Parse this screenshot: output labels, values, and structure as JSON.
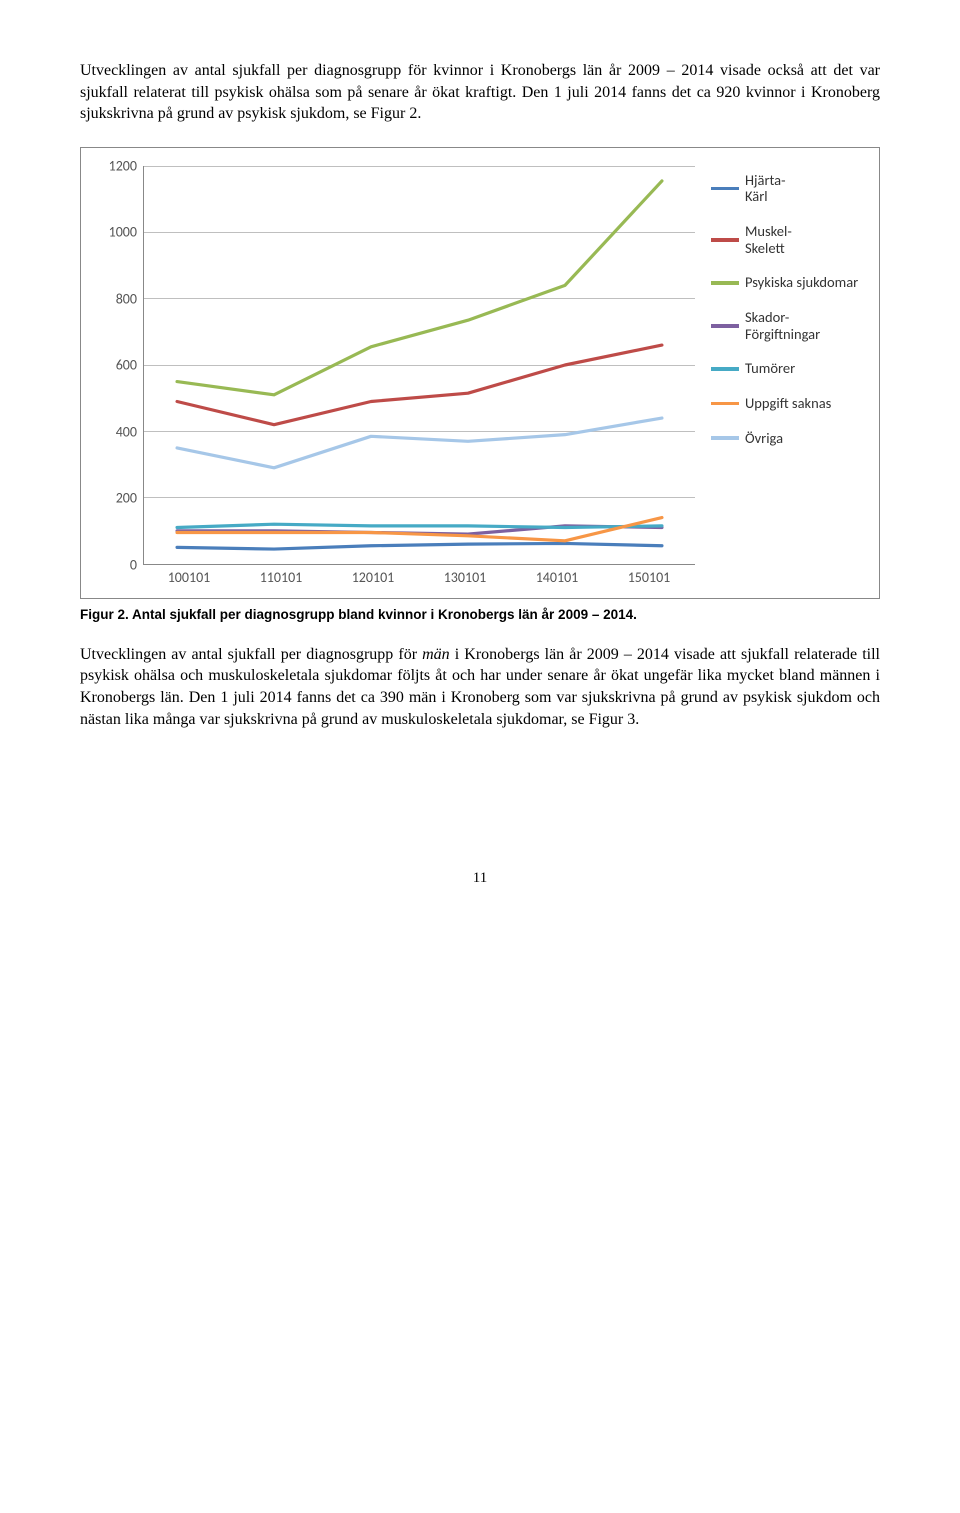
{
  "para1": "Utvecklingen av antal sjukfall per diagnosgrupp för kvinnor i Kronobergs län år 2009 – 2014 visade också att det var sjukfall relaterat till psykisk ohälsa som på senare år ökat kraftigt. Den 1 juli 2014 fanns det ca 920 kvinnor i Kronoberg sjukskrivna på grund av psykisk sjukdom, se Figur 2.",
  "caption": "Figur 2. Antal sjukfall per diagnosgrupp bland kvinnor i Kronobergs län år 2009 – 2014.",
  "para2_pre": "Utvecklingen av antal sjukfall per diagnosgrupp för ",
  "para2_em": "män",
  "para2_post": " i Kronobergs län år 2009 – 2014 visade att sjukfall relaterade till psykisk ohälsa och muskuloskeletala sjukdomar följts åt och har under senare år ökat ungefär lika mycket bland männen i Kronobergs län. Den 1 juli 2014 fanns det ca 390 män i Kronoberg som var sjukskrivna på grund av psykisk sjukdom och nästan lika många var sjukskrivna på grund av muskuloskeletala sjukdomar, se Figur 3.",
  "page_number": "11",
  "chart": {
    "type": "line",
    "ylim": [
      0,
      1200
    ],
    "ytick_step": 200,
    "yticks": [
      0,
      200,
      400,
      600,
      800,
      1000,
      1200
    ],
    "x_categories": [
      "100101",
      "110101",
      "120101",
      "130101",
      "140101",
      "150101"
    ],
    "grid_color": "#bfbfbf",
    "axis_color": "#888888",
    "background": "#ffffff",
    "line_width": 3.2,
    "label_fontsize": 14,
    "series": [
      {
        "name": "Hjärta-Kärl",
        "color": "#4a7ebb",
        "values": [
          50,
          45,
          55,
          60,
          62,
          55
        ]
      },
      {
        "name": "Muskel-Skelett",
        "color": "#be4b48",
        "values": [
          490,
          420,
          490,
          515,
          600,
          660
        ]
      },
      {
        "name": "Psykiska sjukdomar",
        "color": "#98b954",
        "values": [
          550,
          510,
          655,
          735,
          840,
          1155
        ]
      },
      {
        "name": "Skador-Förgiftningar",
        "color": "#7d60a0",
        "values": [
          100,
          100,
          95,
          90,
          115,
          110
        ]
      },
      {
        "name": "Tumörer",
        "color": "#46aac5",
        "values": [
          110,
          120,
          115,
          115,
          110,
          115
        ]
      },
      {
        "name": "Uppgift saknas",
        "color": "#f79646",
        "values": [
          95,
          95,
          95,
          85,
          70,
          140
        ]
      },
      {
        "name": "Övriga",
        "color": "#a6c7e8",
        "values": [
          350,
          290,
          385,
          370,
          390,
          440
        ]
      }
    ]
  }
}
